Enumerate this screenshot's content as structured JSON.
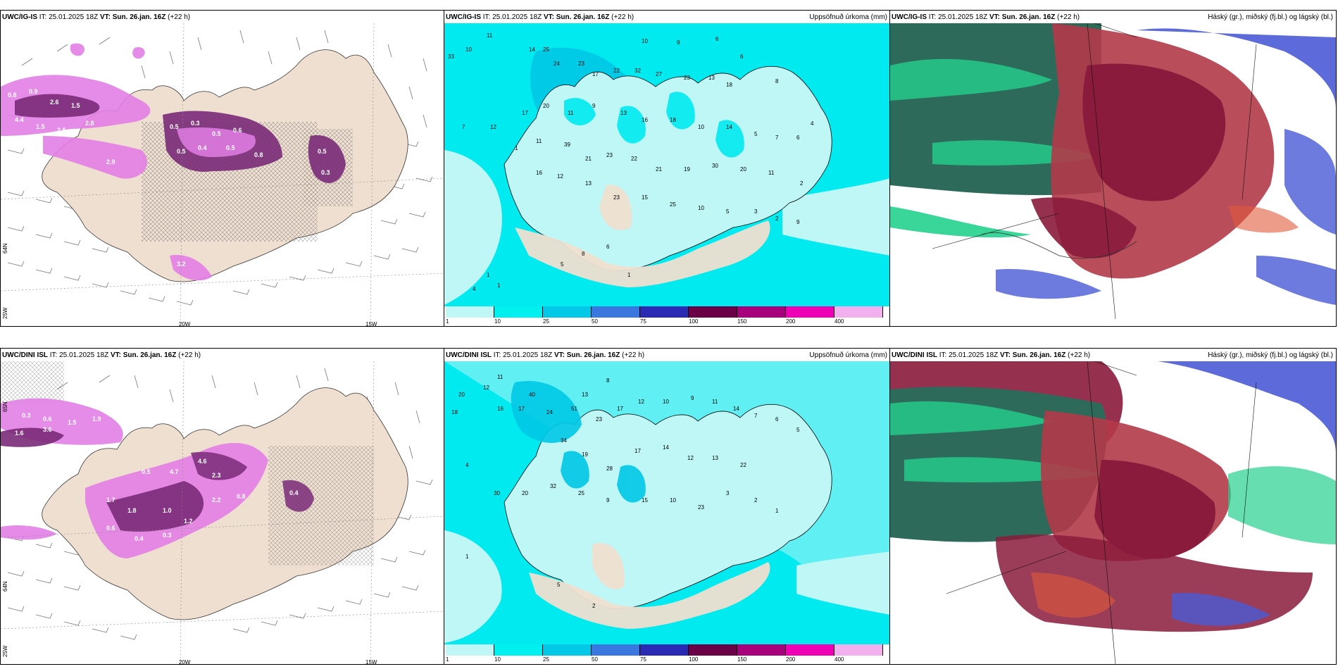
{
  "colors": {
    "land": "#efdfd0",
    "sea_light": "#bff6f6",
    "precip_cyan": "#00eaf0",
    "precip_mid": "#00c8e6",
    "magenta_light": "#e27ee6",
    "magenta_dark": "#7a2a78",
    "cloud_teal": "#2e6a5a",
    "cloud_green": "#25d08e",
    "cloud_red": "#b23a48",
    "cloud_darkred": "#8a1b3c",
    "cloud_blue": "#4a5ad6"
  },
  "top": {
    "left": {
      "model": "UWC/IG-IS",
      "it_label": "IT:",
      "it_value": "25.01.2025 18Z",
      "vt_label": "VT:",
      "vt_value": "Sun. 26.jan. 16Z",
      "lead": "(+22 h)"
    },
    "middle": {
      "model": "UWC/IG-IS",
      "it_label": "IT:",
      "it_value": "25.01.2025 18Z",
      "vt_label": "VT:",
      "vt_value": "Sun. 26.jan. 16Z",
      "lead": "(+22 h)",
      "right_title": "Uppsöfnuð úrkoma (mm)"
    },
    "right": {
      "model": "UWC/IG-IS",
      "it_label": "IT:",
      "it_value": "25.01.2025 18Z",
      "vt_label": "VT:",
      "vt_value": "Sun. 26.jan. 16Z",
      "lead": "(+22 h)",
      "right_title": "Háský (gr.), miðský (fj.bl.) og lágský (bl.)"
    }
  },
  "bottom": {
    "left": {
      "model": "UWC/DINI ISL",
      "it_label": "IT:",
      "it_value": "25.01.2025 18Z",
      "vt_label": "VT:",
      "vt_value": "Sun. 26.jan. 16Z",
      "lead": "(+22 h)"
    },
    "middle": {
      "model": "UWC/DINI ISL",
      "it_label": "IT:",
      "it_value": "25.01.2025 18Z",
      "vt_label": "VT:",
      "vt_value": "Sun. 26.jan. 16Z",
      "lead": "(+22 h)",
      "right_title": "Uppsöfnuð úrkoma (mm)"
    },
    "right": {
      "model": "UWC/DINI ISL",
      "it_label": "IT:",
      "it_value": "25.01.2025 18Z",
      "vt_label": "VT:",
      "vt_value": "Sun. 26.jan. 16Z",
      "lead": "(+22 h)",
      "right_title": "Háský (gr.), miðský (fj.bl.) og lágský (bl.)"
    }
  },
  "axis_labels": {
    "lon_20w": "20W",
    "lon_15w": "15W",
    "lat_65n": "65N",
    "lat_64n": "64N",
    "lat_25w": "25W"
  },
  "colorbar": {
    "colors": [
      "#bff6f6",
      "#00f0f0",
      "#00c8e6",
      "#3a78e0",
      "#2a2ab4",
      "#6a0046",
      "#a8007c",
      "#ee00b4",
      "#f2b0ee"
    ],
    "labels": [
      "1",
      "10",
      "25",
      "50",
      "75",
      "100",
      "150",
      "200",
      "400"
    ]
  },
  "top_precip_numbers": [
    "33",
    "25",
    "10",
    "11",
    "14",
    "24",
    "23",
    "13",
    "10",
    "9",
    "6",
    "6",
    "8",
    "17",
    "22",
    "32",
    "27",
    "23",
    "13",
    "18",
    "7",
    "12",
    "17",
    "20",
    "11",
    "9",
    "13",
    "16",
    "18",
    "10",
    "14",
    "5",
    "7",
    "6",
    "2",
    "4",
    "1",
    "11",
    "39",
    "21",
    "23",
    "22",
    "21",
    "19",
    "30",
    "20",
    "11",
    "16",
    "12",
    "13",
    "23",
    "15",
    "25",
    "10",
    "5",
    "3",
    "2",
    "9",
    "4",
    "8",
    "6",
    "1",
    "1",
    "5"
  ],
  "bottom_precip_numbers": [
    "11",
    "12",
    "20",
    "18",
    "40",
    "16",
    "17",
    "13",
    "8",
    "24",
    "51",
    "23",
    "17",
    "12",
    "10",
    "9",
    "11",
    "14",
    "7",
    "6",
    "5",
    "4",
    "34",
    "19",
    "28",
    "17",
    "14",
    "12",
    "13",
    "22",
    "30",
    "20",
    "32",
    "25",
    "9",
    "15",
    "10",
    "23",
    "3",
    "2",
    "1"
  ]
}
